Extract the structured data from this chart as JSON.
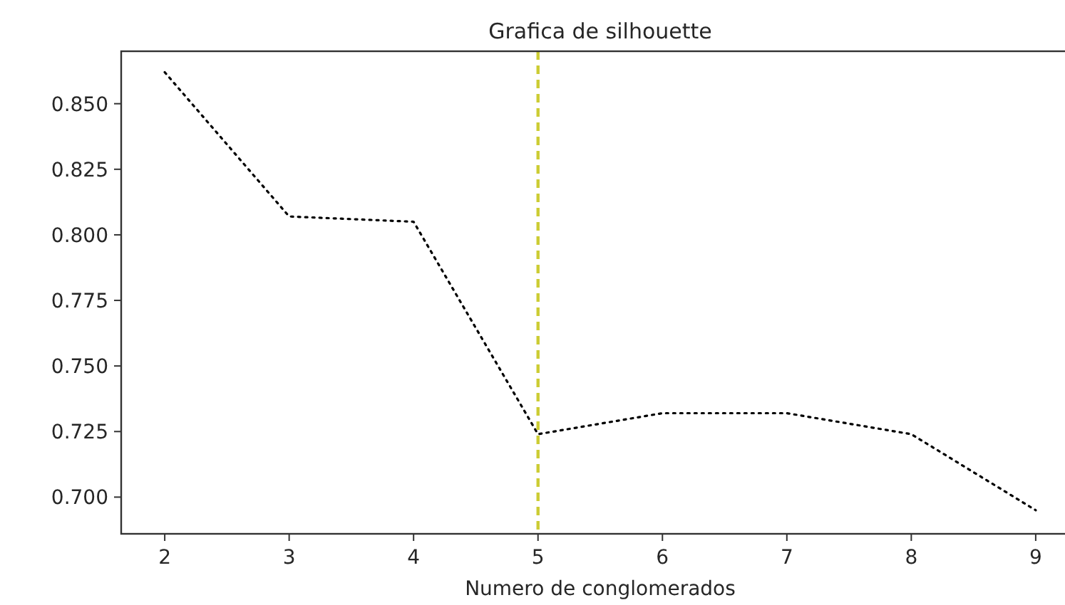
{
  "chart_data": {
    "type": "line",
    "title": "Grafica de silhouette",
    "xlabel": "Numero de conglomerados",
    "x": [
      2,
      3,
      4,
      5,
      6,
      7,
      8,
      9
    ],
    "values": [
      0.862,
      0.807,
      0.805,
      0.724,
      0.732,
      0.732,
      0.724,
      0.695
    ],
    "color": "#000000",
    "line_style": "dotted",
    "ref_lines": [
      {
        "axis": "x",
        "value": 5,
        "color": "#cccc33",
        "line_style": "dashed"
      }
    ],
    "xlim": [
      1.65,
      9.35
    ],
    "ylim": [
      0.686,
      0.87
    ],
    "xticks": [
      2,
      3,
      4,
      5,
      6,
      7,
      8,
      9
    ],
    "yticks": [
      {
        "value": 0.7,
        "label": "0.700"
      },
      {
        "value": 0.725,
        "label": "0.725"
      },
      {
        "value": 0.75,
        "label": "0.750"
      },
      {
        "value": 0.775,
        "label": "0.775"
      },
      {
        "value": 0.8,
        "label": "0.800"
      },
      {
        "value": 0.825,
        "label": "0.825"
      },
      {
        "value": 0.85,
        "label": "0.850"
      }
    ]
  }
}
